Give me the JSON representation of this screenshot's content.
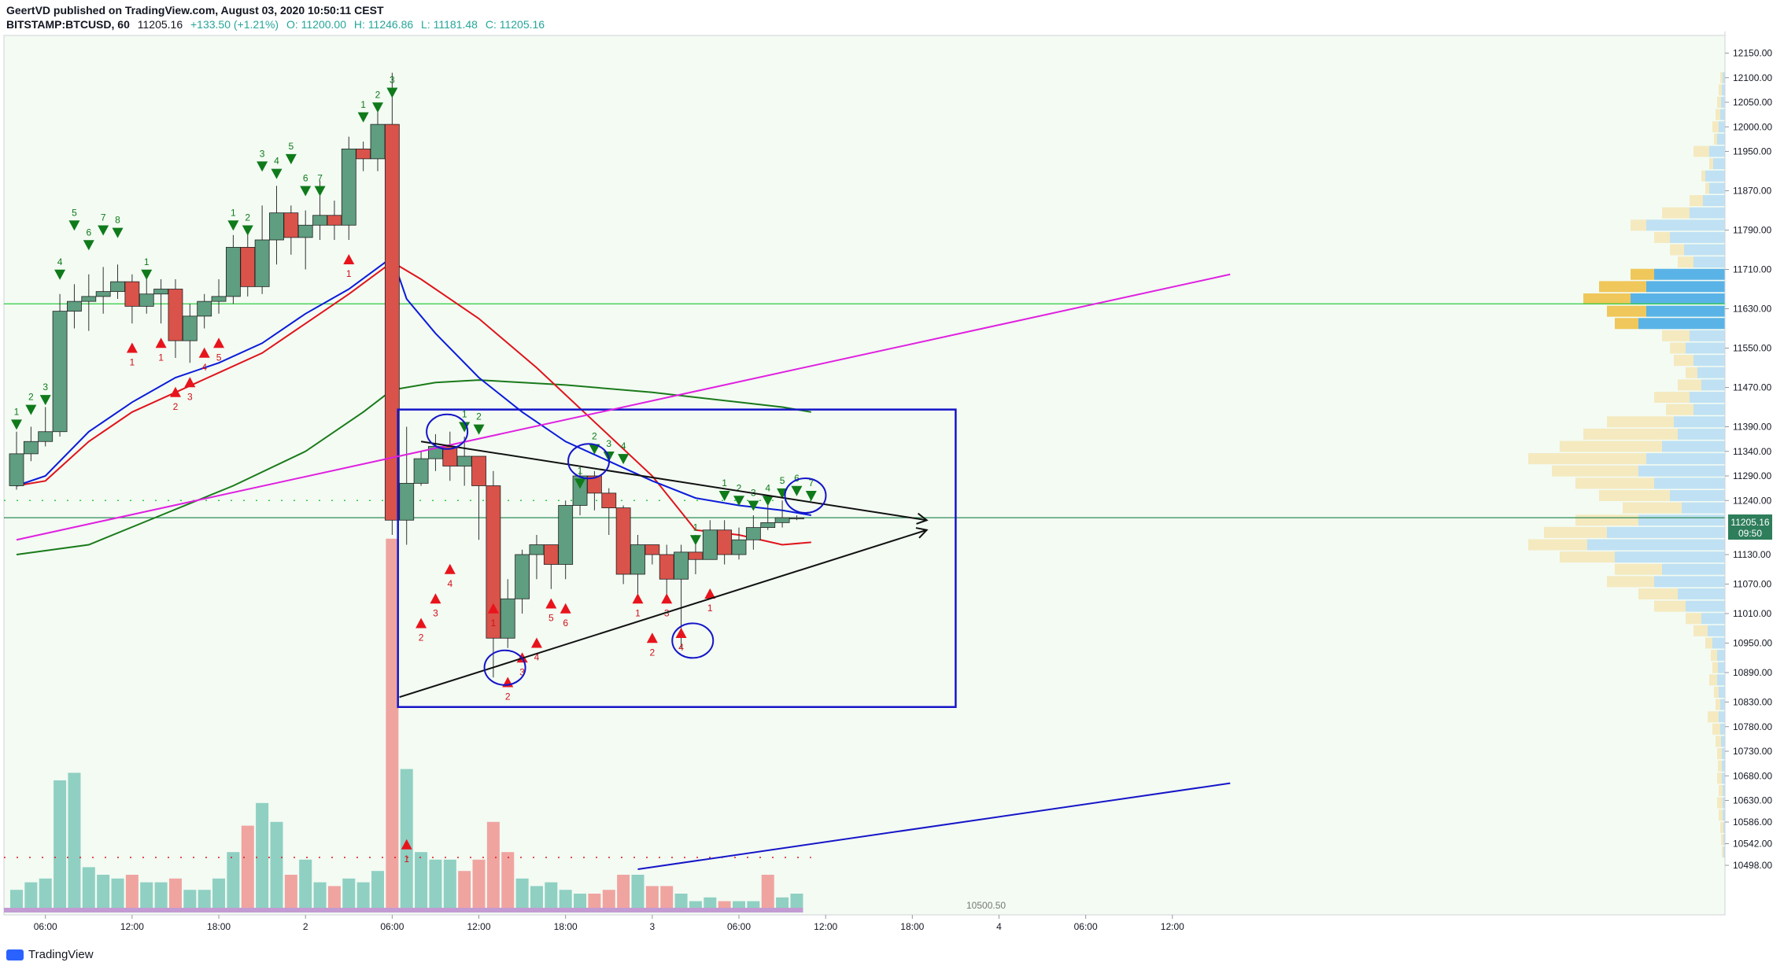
{
  "header": {
    "line1": "GeertVD published on TradingView.com, August 03, 2020 10:50:11 CEST",
    "symbol": "BITSTAMP:BTCUSD, 60",
    "last": "11205.16",
    "change": "+133.50 (+1.21%)",
    "open": "O: 11200.00",
    "high": "H: 11246.86",
    "low": "L: 11181.48",
    "close": "C: 11205.16"
  },
  "price_tag": {
    "value": "11205.16",
    "countdown": "09:50"
  },
  "volume_label": "10500.50",
  "footer": {
    "brand": "TradingView"
  },
  "colors": {
    "bull": "#5f9e80",
    "bear": "#d9534a",
    "ema_fast": "#0b1bd9",
    "ema_slow": "#e0141c",
    "sma": "#1a7a1a",
    "trend": "#e020e0",
    "box": "#1515c8"
  },
  "chart_data": {
    "type": "candlestick",
    "symbol": "BITSTAMP:BTCUSD",
    "interval": "60",
    "y_ticks": [
      12150,
      12100,
      12050,
      12000,
      11950,
      11870,
      11790,
      11710,
      11630,
      11550,
      11470,
      11390,
      11340,
      11290,
      11240,
      11130,
      11070,
      11010,
      10950,
      10890,
      10830,
      10780,
      10730,
      10680,
      10630,
      10586,
      10542,
      10498
    ],
    "x_ticks": [
      {
        "i": 2,
        "label": "06:00"
      },
      {
        "i": 8,
        "label": "12:00"
      },
      {
        "i": 14,
        "label": "18:00"
      },
      {
        "i": 20,
        "label": "2"
      },
      {
        "i": 26,
        "label": "06:00"
      },
      {
        "i": 32,
        "label": "12:00"
      },
      {
        "i": 38,
        "label": "18:00"
      },
      {
        "i": 44,
        "label": "3"
      },
      {
        "i": 50,
        "label": "06:00"
      },
      {
        "i": 56,
        "label": "12:00"
      },
      {
        "i": 62,
        "label": "18:00"
      },
      {
        "i": 68,
        "label": "4"
      },
      {
        "i": 74,
        "label": "06:00"
      },
      {
        "i": 80,
        "label": "12:00"
      }
    ],
    "candles": [
      [
        11270,
        11335,
        11380,
        11262
      ],
      [
        11335,
        11360,
        11390,
        11320
      ],
      [
        11360,
        11380,
        11430,
        11350
      ],
      [
        11380,
        11625,
        11660,
        11370
      ],
      [
        11625,
        11645,
        11680,
        11590
      ],
      [
        11645,
        11655,
        11700,
        11585
      ],
      [
        11655,
        11665,
        11715,
        11620
      ],
      [
        11665,
        11685,
        11720,
        11650
      ],
      [
        11685,
        11635,
        11700,
        11600
      ],
      [
        11635,
        11660,
        11700,
        11620
      ],
      [
        11660,
        11670,
        11690,
        11600
      ],
      [
        11670,
        11565,
        11690,
        11530
      ],
      [
        11565,
        11615,
        11640,
        11520
      ],
      [
        11615,
        11645,
        11660,
        11590
      ],
      [
        11645,
        11655,
        11690,
        11620
      ],
      [
        11655,
        11755,
        11780,
        11640
      ],
      [
        11755,
        11675,
        11790,
        11655
      ],
      [
        11675,
        11770,
        11840,
        11660
      ],
      [
        11770,
        11825,
        11880,
        11720
      ],
      [
        11825,
        11775,
        11840,
        11740
      ],
      [
        11775,
        11800,
        11830,
        11710
      ],
      [
        11800,
        11820,
        11890,
        11770
      ],
      [
        11820,
        11800,
        11850,
        11770
      ],
      [
        11800,
        11955,
        11980,
        11770
      ],
      [
        11955,
        11935,
        11970,
        11910
      ],
      [
        11935,
        12005,
        12030,
        11910
      ],
      [
        12005,
        11200,
        12110,
        11170
      ],
      [
        11200,
        11275,
        11390,
        11150
      ],
      [
        11275,
        11325,
        11340,
        11270
      ],
      [
        11325,
        11350,
        11375,
        11300
      ],
      [
        11350,
        11310,
        11380,
        11280
      ],
      [
        11310,
        11330,
        11370,
        11270
      ],
      [
        11330,
        11270,
        11300,
        11160
      ],
      [
        11270,
        10960,
        11300,
        10880
      ],
      [
        10960,
        11040,
        11080,
        10940
      ],
      [
        11040,
        11130,
        11140,
        11010
      ],
      [
        11130,
        11150,
        11170,
        11080
      ],
      [
        11150,
        11110,
        11150,
        11060
      ],
      [
        11110,
        11230,
        11240,
        11080
      ],
      [
        11230,
        11290,
        11300,
        11210
      ],
      [
        11290,
        11255,
        11300,
        11220
      ],
      [
        11255,
        11225,
        11265,
        11170
      ],
      [
        11225,
        11090,
        11230,
        11070
      ],
      [
        11090,
        11150,
        11170,
        11040
      ],
      [
        11150,
        11130,
        11140,
        11110
      ],
      [
        11130,
        11080,
        11150,
        11040
      ],
      [
        11080,
        11135,
        11150,
        10940
      ],
      [
        11135,
        11120,
        11170,
        11090
      ],
      [
        11120,
        11180,
        11200,
        11120
      ],
      [
        11180,
        11130,
        11200,
        11110
      ],
      [
        11130,
        11160,
        11185,
        11120
      ],
      [
        11160,
        11185,
        11210,
        11140
      ],
      [
        11185,
        11195,
        11230,
        11180
      ],
      [
        11195,
        11205,
        11240,
        11185
      ],
      [
        11205,
        11205,
        11210,
        11200
      ]
    ],
    "volume": [
      [
        30,
        "bull"
      ],
      [
        40,
        "bull"
      ],
      [
        45,
        "bull"
      ],
      [
        175,
        "bull"
      ],
      [
        185,
        "bull"
      ],
      [
        60,
        "bull"
      ],
      [
        50,
        "bull"
      ],
      [
        45,
        "bull"
      ],
      [
        50,
        "bear"
      ],
      [
        40,
        "bull"
      ],
      [
        40,
        "bull"
      ],
      [
        45,
        "bear"
      ],
      [
        30,
        "bull"
      ],
      [
        30,
        "bull"
      ],
      [
        45,
        "bull"
      ],
      [
        80,
        "bull"
      ],
      [
        115,
        "bear"
      ],
      [
        145,
        "bull"
      ],
      [
        120,
        "bull"
      ],
      [
        50,
        "bear"
      ],
      [
        70,
        "bull"
      ],
      [
        40,
        "bull"
      ],
      [
        35,
        "bear"
      ],
      [
        45,
        "bull"
      ],
      [
        40,
        "bull"
      ],
      [
        55,
        "bull"
      ],
      [
        495,
        "bear"
      ],
      [
        190,
        "bull"
      ],
      [
        80,
        "bull"
      ],
      [
        70,
        "bull"
      ],
      [
        70,
        "bull"
      ],
      [
        55,
        "bear"
      ],
      [
        70,
        "bear"
      ],
      [
        120,
        "bear"
      ],
      [
        80,
        "bear"
      ],
      [
        45,
        "bull"
      ],
      [
        35,
        "bull"
      ],
      [
        40,
        "bull"
      ],
      [
        30,
        "bull"
      ],
      [
        25,
        "bull"
      ],
      [
        25,
        "bear"
      ],
      [
        30,
        "bear"
      ],
      [
        50,
        "bear"
      ],
      [
        50,
        "bull"
      ],
      [
        35,
        "bear"
      ],
      [
        35,
        "bear"
      ],
      [
        25,
        "bull"
      ],
      [
        15,
        "bull"
      ],
      [
        20,
        "bull"
      ],
      [
        15,
        "bear"
      ],
      [
        15,
        "bull"
      ],
      [
        15,
        "bull"
      ],
      [
        50,
        "bear"
      ],
      [
        20,
        "bull"
      ],
      [
        25,
        "bull"
      ]
    ],
    "ema_fast": [
      [
        0,
        11270
      ],
      [
        2,
        11290
      ],
      [
        5,
        11380
      ],
      [
        8,
        11440
      ],
      [
        11,
        11490
      ],
      [
        14,
        11520
      ],
      [
        17,
        11560
      ],
      [
        20,
        11620
      ],
      [
        23,
        11670
      ],
      [
        26,
        11735
      ],
      [
        27,
        11650
      ],
      [
        29,
        11580
      ],
      [
        32,
        11490
      ],
      [
        35,
        11420
      ],
      [
        38,
        11360
      ],
      [
        41,
        11320
      ],
      [
        44,
        11280
      ],
      [
        47,
        11245
      ],
      [
        50,
        11230
      ],
      [
        53,
        11220
      ],
      [
        55,
        11210
      ]
    ],
    "ema_slow": [
      [
        0,
        11270
      ],
      [
        2,
        11280
      ],
      [
        5,
        11360
      ],
      [
        8,
        11420
      ],
      [
        11,
        11460
      ],
      [
        14,
        11500
      ],
      [
        17,
        11540
      ],
      [
        20,
        11600
      ],
      [
        23,
        11660
      ],
      [
        26,
        11725
      ],
      [
        28,
        11690
      ],
      [
        32,
        11610
      ],
      [
        36,
        11510
      ],
      [
        40,
        11400
      ],
      [
        44,
        11290
      ],
      [
        47,
        11180
      ],
      [
        50,
        11170
      ],
      [
        53,
        11150
      ],
      [
        55,
        11155
      ]
    ],
    "sma": [
      [
        0,
        11130
      ],
      [
        5,
        11150
      ],
      [
        10,
        11210
      ],
      [
        15,
        11270
      ],
      [
        20,
        11340
      ],
      [
        24,
        11420
      ],
      [
        26,
        11465
      ],
      [
        29,
        11480
      ],
      [
        32,
        11485
      ],
      [
        38,
        11475
      ],
      [
        44,
        11460
      ],
      [
        50,
        11440
      ],
      [
        53,
        11430
      ],
      [
        55,
        11420
      ]
    ],
    "trendlines": [
      {
        "from": [
          0,
          11160
        ],
        "to": [
          84,
          11700
        ],
        "color": "#e020e0"
      },
      {
        "from": [
          28,
          11360
        ],
        "to": [
          63,
          11200
        ],
        "color": "#111111",
        "arrow": true
      },
      {
        "from": [
          26.5,
          10840
        ],
        "to": [
          63,
          11180
        ],
        "color": "#111111",
        "arrow": true
      },
      {
        "from": [
          43,
          10490
        ],
        "to": [
          84,
          10665
        ],
        "color": "#1515c8"
      }
    ],
    "horizontal_lines": [
      {
        "price": 11640,
        "color": "#2ecc40"
      },
      {
        "price": 11205,
        "color": "#2e8b57"
      }
    ],
    "rectangle": {
      "i1": 26.4,
      "i2": 65,
      "p1": 11425,
      "p2": 10820
    },
    "circles": [
      [
        29.8,
        11380
      ],
      [
        33.8,
        10900
      ],
      [
        39.6,
        11320
      ],
      [
        46.8,
        10955
      ],
      [
        54.6,
        11250
      ]
    ],
    "markers_up": [
      [
        28,
        10990,
        "2"
      ],
      [
        29,
        11040,
        "3"
      ],
      [
        30,
        11100,
        "4"
      ],
      [
        33,
        11020,
        "1"
      ],
      [
        34,
        10870,
        "2"
      ],
      [
        35,
        10920,
        "3"
      ],
      [
        36,
        10950,
        "4"
      ],
      [
        37,
        11030,
        "5"
      ],
      [
        38,
        11020,
        "6"
      ],
      [
        44,
        10960,
        "2"
      ],
      [
        43,
        11040,
        "1"
      ],
      [
        45,
        11040,
        "3"
      ],
      [
        46,
        10970,
        "4"
      ],
      [
        48,
        11050,
        "1"
      ],
      [
        8,
        11550,
        "1"
      ],
      [
        10,
        11560,
        "1"
      ],
      [
        11,
        11460,
        "2"
      ],
      [
        12,
        11480,
        "3"
      ],
      [
        13,
        11540,
        "4"
      ],
      [
        14,
        11560,
        "5"
      ],
      [
        23,
        11730,
        "1"
      ],
      [
        27,
        10540,
        "1"
      ]
    ],
    "markers_down": [
      [
        0,
        11395,
        "1"
      ],
      [
        1,
        11425,
        "2"
      ],
      [
        2,
        11445,
        "3"
      ],
      [
        3,
        11700,
        "4"
      ],
      [
        4,
        11800,
        "5"
      ],
      [
        5,
        11760,
        "6"
      ],
      [
        6,
        11790,
        "7"
      ],
      [
        7,
        11785,
        "8"
      ],
      [
        9,
        11700,
        "1"
      ],
      [
        17,
        11920,
        "3"
      ],
      [
        18,
        11905,
        "4"
      ],
      [
        19,
        11935,
        "5"
      ],
      [
        20,
        11870,
        "6"
      ],
      [
        21,
        11870,
        "7"
      ],
      [
        24,
        12020,
        "1"
      ],
      [
        25,
        12040,
        "2"
      ],
      [
        26,
        12070,
        "3"
      ],
      [
        16,
        11790,
        "2"
      ],
      [
        15,
        11800,
        "1"
      ],
      [
        31,
        11390,
        "1"
      ],
      [
        32,
        11385,
        "2"
      ],
      [
        39,
        11275,
        "1"
      ],
      [
        40,
        11345,
        "2"
      ],
      [
        41,
        11330,
        "3"
      ],
      [
        42,
        11325,
        "4"
      ],
      [
        47,
        11160,
        "1"
      ],
      [
        49,
        11250,
        "1"
      ],
      [
        50,
        11240,
        "2"
      ],
      [
        51,
        11230,
        "3"
      ],
      [
        52,
        11240,
        "4"
      ],
      [
        53,
        11255,
        "5"
      ],
      [
        54,
        11260,
        "6"
      ],
      [
        55,
        11250,
        "7"
      ]
    ],
    "volume_profile": [
      [
        12100,
        6,
        3
      ],
      [
        12075,
        8,
        4
      ],
      [
        12050,
        10,
        5
      ],
      [
        12025,
        12,
        6
      ],
      [
        12000,
        16,
        8
      ],
      [
        11975,
        14,
        10
      ],
      [
        11950,
        40,
        20
      ],
      [
        11925,
        20,
        15
      ],
      [
        11900,
        30,
        25
      ],
      [
        11875,
        25,
        20
      ],
      [
        11850,
        45,
        28
      ],
      [
        11825,
        80,
        45
      ],
      [
        11800,
        120,
        100
      ],
      [
        11775,
        90,
        70
      ],
      [
        11750,
        70,
        52
      ],
      [
        11725,
        60,
        40
      ],
      [
        11700,
        120,
        90
      ],
      [
        11675,
        160,
        100
      ],
      [
        11650,
        180,
        120
      ],
      [
        11625,
        150,
        100
      ],
      [
        11600,
        140,
        110
      ],
      [
        11575,
        80,
        45
      ],
      [
        11550,
        70,
        50
      ],
      [
        11525,
        65,
        40
      ],
      [
        11500,
        50,
        35
      ],
      [
        11475,
        60,
        30
      ],
      [
        11450,
        90,
        45
      ],
      [
        11425,
        75,
        40
      ],
      [
        11400,
        150,
        65
      ],
      [
        11375,
        180,
        60
      ],
      [
        11350,
        210,
        80
      ],
      [
        11325,
        250,
        100
      ],
      [
        11300,
        220,
        110
      ],
      [
        11275,
        190,
        90
      ],
      [
        11250,
        160,
        70
      ],
      [
        11225,
        130,
        55
      ],
      [
        11200,
        190,
        110
      ],
      [
        11175,
        230,
        150
      ],
      [
        11150,
        250,
        175
      ],
      [
        11125,
        210,
        140
      ],
      [
        11100,
        140,
        80
      ],
      [
        11075,
        150,
        90
      ],
      [
        11050,
        110,
        60
      ],
      [
        11025,
        90,
        50
      ],
      [
        11000,
        50,
        30
      ],
      [
        10975,
        40,
        22
      ],
      [
        10950,
        25,
        16
      ],
      [
        10925,
        18,
        10
      ],
      [
        10900,
        16,
        9
      ],
      [
        10875,
        20,
        10
      ],
      [
        10850,
        14,
        8
      ],
      [
        10825,
        12,
        6
      ],
      [
        10800,
        22,
        8
      ],
      [
        10775,
        16,
        6
      ],
      [
        10750,
        12,
        5
      ],
      [
        10725,
        10,
        4
      ],
      [
        10700,
        9,
        4
      ],
      [
        10675,
        10,
        4
      ],
      [
        10650,
        8,
        3
      ],
      [
        10625,
        10,
        3
      ],
      [
        10600,
        8,
        3
      ],
      [
        10575,
        6,
        2
      ],
      [
        10550,
        5,
        2
      ],
      [
        10525,
        4,
        2
      ]
    ]
  }
}
